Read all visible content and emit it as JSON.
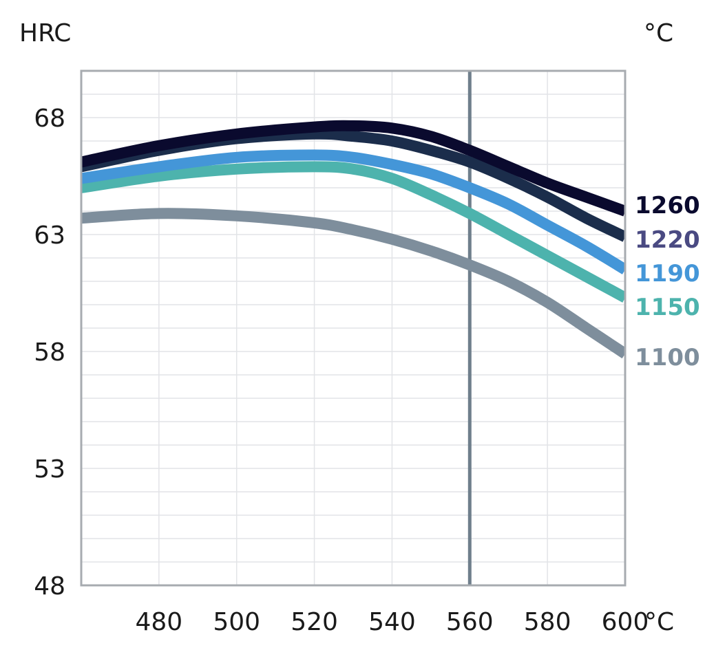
{
  "chart_data": {
    "type": "line",
    "ylabel": "HRC",
    "y_unit_right": "°C",
    "x_unit": "°C",
    "xlim": [
      460,
      600
    ],
    "ylim": [
      48,
      70
    ],
    "x_ticks": [
      480,
      500,
      520,
      540,
      560,
      580,
      600
    ],
    "y_ticks": [
      48,
      53,
      58,
      63,
      68
    ],
    "grid": true,
    "reference_line_x": 560,
    "reference_line_color": "#6f7f8c",
    "series": [
      {
        "name": "1260",
        "color": "#0a0a2e",
        "label_color": "#0a0a2e",
        "x": [
          460,
          480,
          500,
          520,
          530,
          540,
          550,
          560,
          570,
          580,
          590,
          600
        ],
        "y": [
          66.1,
          66.8,
          67.3,
          67.6,
          67.65,
          67.55,
          67.2,
          66.6,
          65.9,
          65.2,
          64.6,
          64.0
        ]
      },
      {
        "name": "1220",
        "color": "#1b2d4b",
        "label_color": "#4a4a82",
        "x": [
          460,
          480,
          500,
          520,
          530,
          540,
          550,
          560,
          570,
          580,
          590,
          600
        ],
        "y": [
          65.9,
          66.6,
          67.1,
          67.3,
          67.2,
          67.0,
          66.6,
          66.1,
          65.4,
          64.6,
          63.7,
          62.9
        ]
      },
      {
        "name": "1190",
        "color": "#4496d8",
        "label_color": "#4496d8",
        "x": [
          460,
          480,
          500,
          520,
          530,
          540,
          550,
          560,
          570,
          580,
          590,
          600
        ],
        "y": [
          65.4,
          65.9,
          66.3,
          66.4,
          66.3,
          66.0,
          65.6,
          65.0,
          64.3,
          63.4,
          62.5,
          61.5
        ]
      },
      {
        "name": "1150",
        "color": "#4db3ad",
        "label_color": "#4db3ad",
        "x": [
          460,
          480,
          500,
          520,
          530,
          540,
          550,
          560,
          570,
          580,
          590,
          600
        ],
        "y": [
          65.0,
          65.5,
          65.8,
          65.9,
          65.8,
          65.4,
          64.7,
          63.9,
          63.0,
          62.1,
          61.2,
          60.3
        ]
      },
      {
        "name": "1100",
        "color": "#7e8e9c",
        "label_color": "#7e8e9c",
        "x": [
          460,
          480,
          500,
          520,
          530,
          540,
          550,
          560,
          570,
          580,
          590,
          600
        ],
        "y": [
          63.7,
          63.9,
          63.8,
          63.5,
          63.2,
          62.8,
          62.3,
          61.7,
          61.0,
          60.1,
          59.0,
          57.9
        ]
      }
    ]
  }
}
